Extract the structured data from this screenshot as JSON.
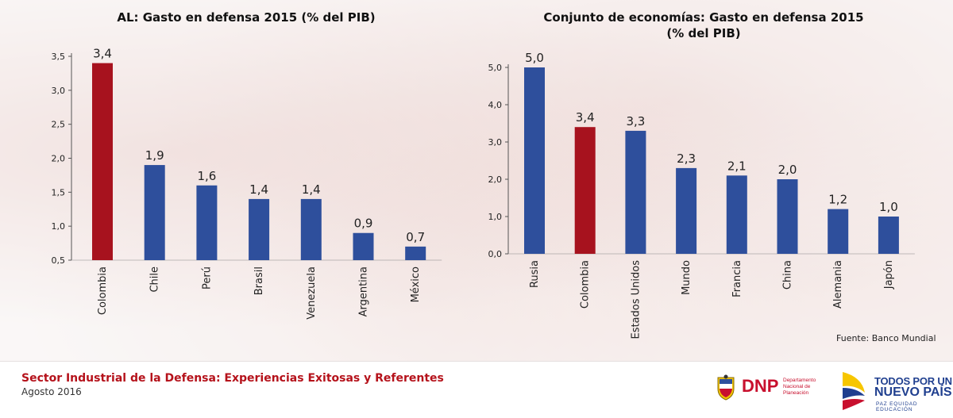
{
  "chart_data": [
    {
      "type": "bar",
      "title": "AL: Gasto en defensa 2015 (% del PIB)",
      "categories": [
        "Colombia",
        "Chile",
        "Perú",
        "Brasil",
        "Venezuela",
        "Argentina",
        "México"
      ],
      "values": [
        3.4,
        1.9,
        1.6,
        1.4,
        1.4,
        0.9,
        0.7
      ],
      "data_labels": [
        "3,4",
        "1,9",
        "1,6",
        "1,4",
        "1,4",
        "0,9",
        "0,7"
      ],
      "highlight_index": 0,
      "ylim": [
        0.5,
        3.5
      ],
      "yticks": [
        0.5,
        1.0,
        1.5,
        2.0,
        2.5,
        3.0,
        3.5
      ],
      "ytick_labels": [
        "0,5",
        "1,0",
        "1,5",
        "2,0",
        "2,5",
        "3,0",
        "3,5"
      ],
      "grid": false,
      "colors": {
        "bar": "#2e4f9c",
        "highlight": "#a7121e"
      }
    },
    {
      "type": "bar",
      "title": "Conjunto de economías: Gasto en defensa 2015",
      "subtitle": "(% del PIB)",
      "categories": [
        "Rusia",
        "Colombia",
        "Estados Unidos",
        "Mundo",
        "Francia",
        "China",
        "Alemania",
        "Japón"
      ],
      "values": [
        5.0,
        3.4,
        3.3,
        2.3,
        2.1,
        2.0,
        1.2,
        1.0
      ],
      "data_labels": [
        "5,0",
        "3,4",
        "3,3",
        "2,3",
        "2,1",
        "2,0",
        "1,2",
        "1,0"
      ],
      "highlight_index": 1,
      "ylim": [
        0.0,
        5.0
      ],
      "yticks": [
        0,
        1,
        2,
        3,
        4,
        5
      ],
      "ytick_labels": [
        "0,0",
        "1,0",
        "2,0",
        "3,0",
        "4,0",
        "5,0"
      ],
      "grid": false,
      "colors": {
        "bar": "#2e4f9c",
        "highlight": "#a7121e"
      }
    }
  ],
  "source": "Fuente: Banco Mundial",
  "footer": {
    "title": "Sector Industrial de la Defensa: Experiencias Exitosas y Referentes",
    "date": "Agosto 2016"
  },
  "logos": {
    "dnp": {
      "name": "DNP",
      "sub": "Departamento Nacional de Planeación"
    },
    "gobierno": {
      "line1": "TODOS POR UN",
      "line2": "NUEVO PAÍS",
      "line3": "PAZ  EQUIDAD  EDUCACIÓN"
    }
  }
}
